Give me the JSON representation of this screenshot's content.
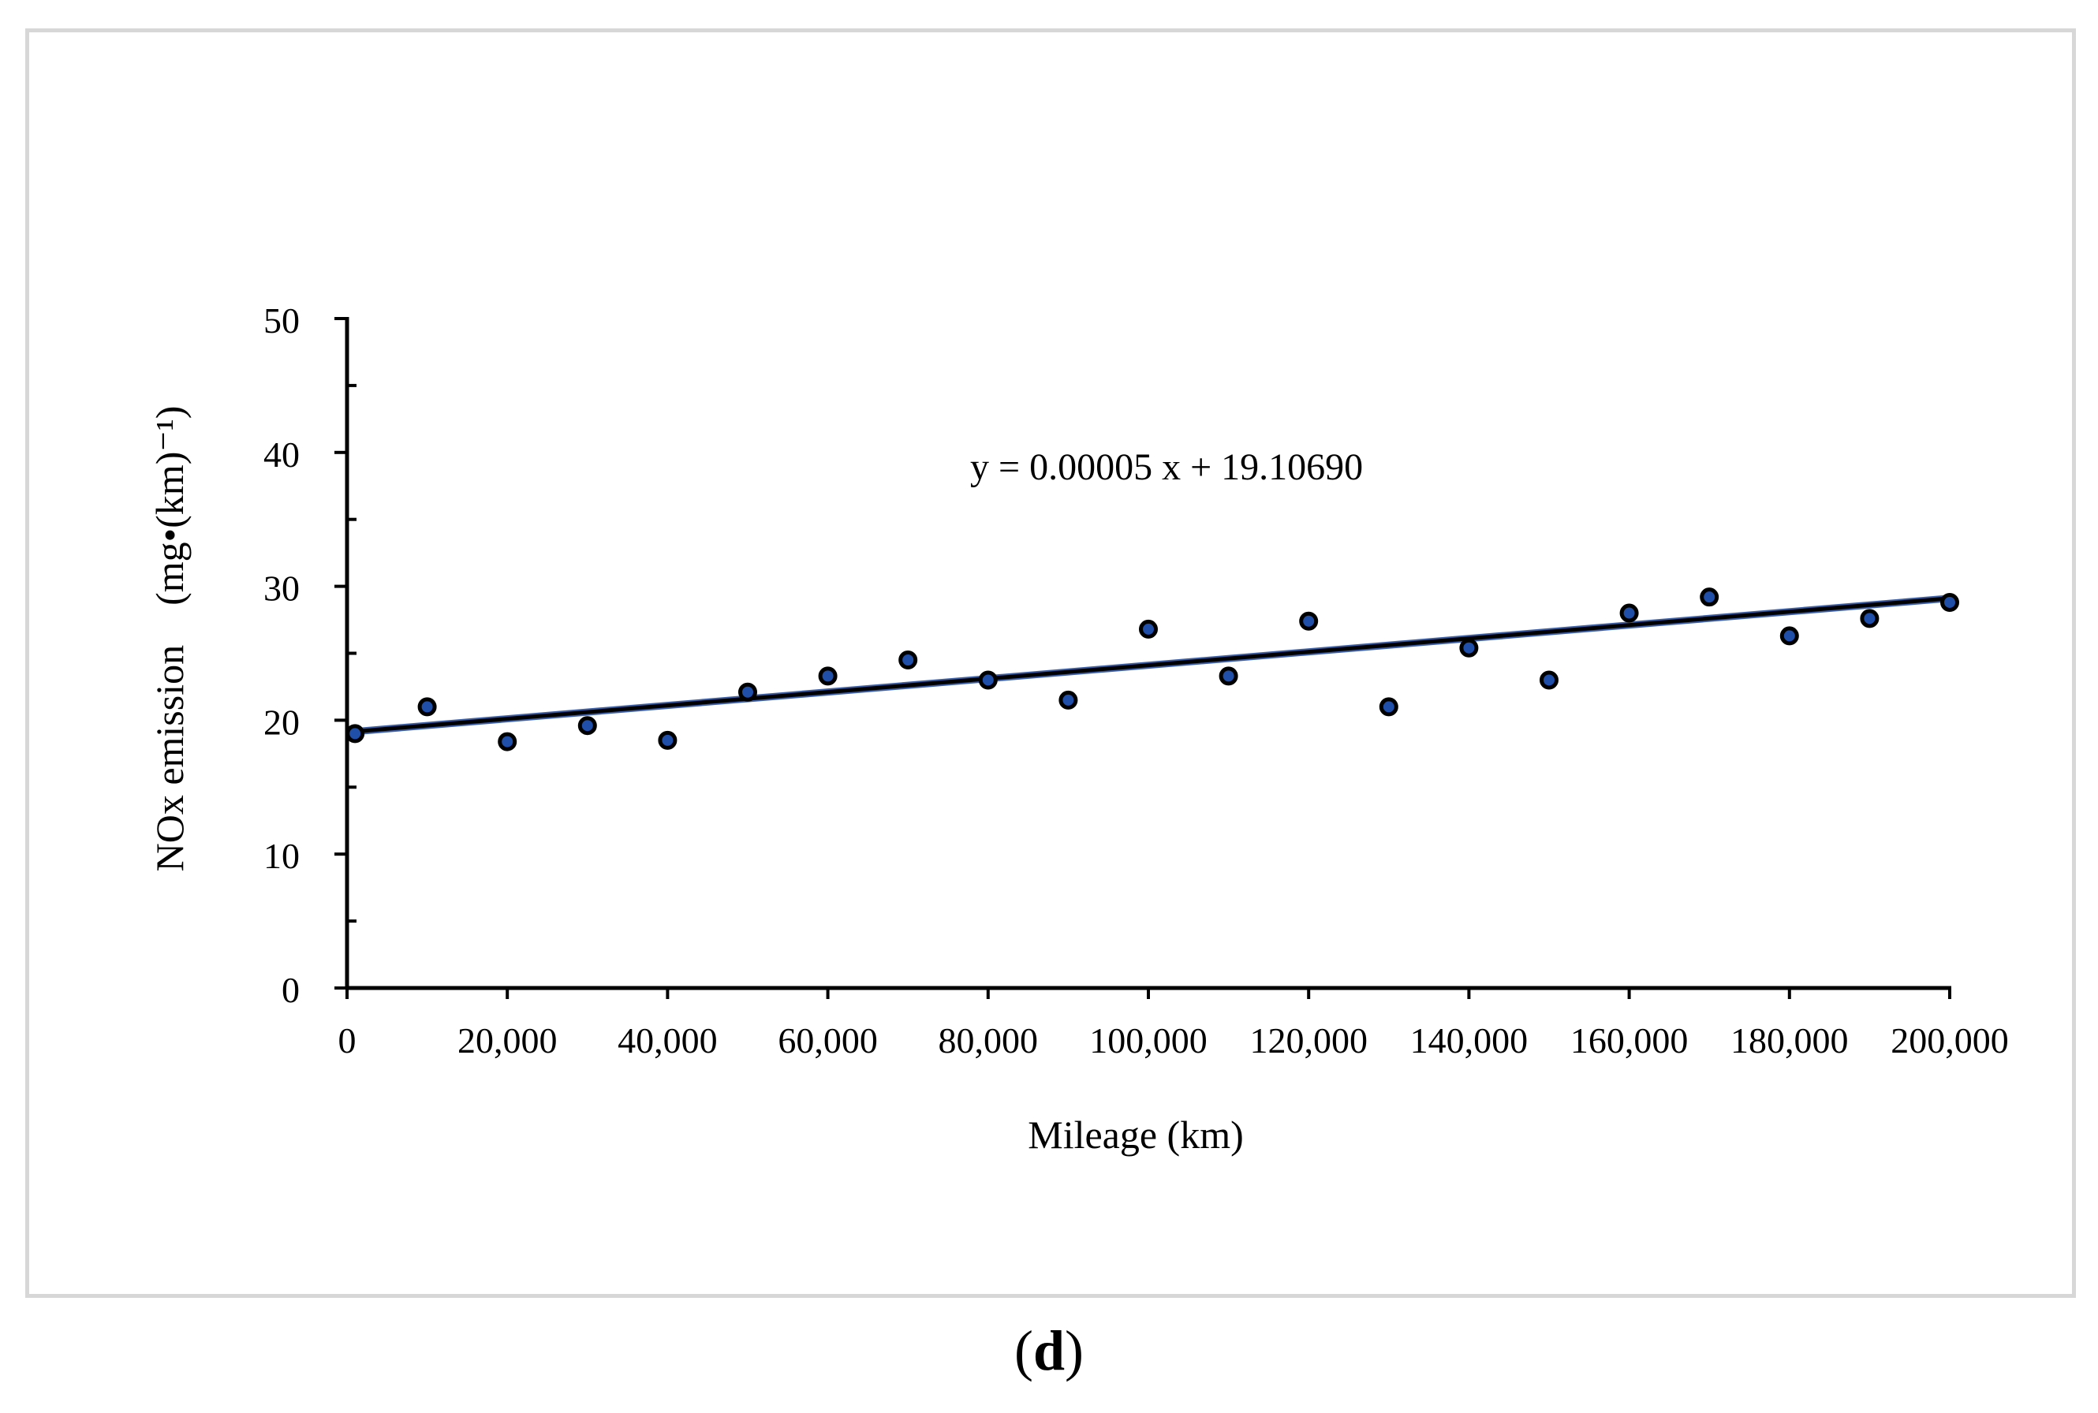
{
  "chart_data": {
    "type": "scatter",
    "title": "",
    "xlabel": "Mileage  (km)",
    "ylabel": "NOx emission　(mg•(km)⁻¹)",
    "xlim": [
      0,
      200000
    ],
    "ylim": [
      0,
      50
    ],
    "x_ticks": [
      0,
      20000,
      40000,
      60000,
      80000,
      100000,
      120000,
      140000,
      160000,
      180000,
      200000
    ],
    "x_tick_labels": [
      "0",
      "20,000",
      "40,000",
      "60,000",
      "80,000",
      "100,000",
      "120,000",
      "140,000",
      "160,000",
      "180,000",
      "200,000"
    ],
    "y_ticks": [
      0,
      10,
      20,
      30,
      40,
      50
    ],
    "y_tick_labels": [
      "0",
      "10",
      "20",
      "30",
      "40",
      "50"
    ],
    "series": [
      {
        "name": "NOx emission",
        "marker_color": "#1f4fa8",
        "x": [
          1000,
          10000,
          20000,
          30000,
          40000,
          50000,
          60000,
          70000,
          80000,
          90000,
          100000,
          110000,
          120000,
          130000,
          140000,
          150000,
          160000,
          170000,
          180000,
          190000,
          200000
        ],
        "y": [
          19.0,
          21.0,
          18.4,
          19.6,
          18.5,
          22.1,
          23.3,
          24.5,
          23.0,
          21.5,
          26.8,
          23.3,
          27.4,
          21.0,
          25.4,
          23.0,
          28.0,
          29.2,
          26.3,
          27.6,
          28.8
        ]
      }
    ],
    "trendline": {
      "slope": 5e-05,
      "intercept": 19.1069,
      "equation_label": "y = 0.00005 x + 19.10690",
      "color": "#000000"
    },
    "grid": false,
    "legend": "none"
  },
  "caption": {
    "open": "(",
    "letter": "d",
    "close": ")"
  }
}
